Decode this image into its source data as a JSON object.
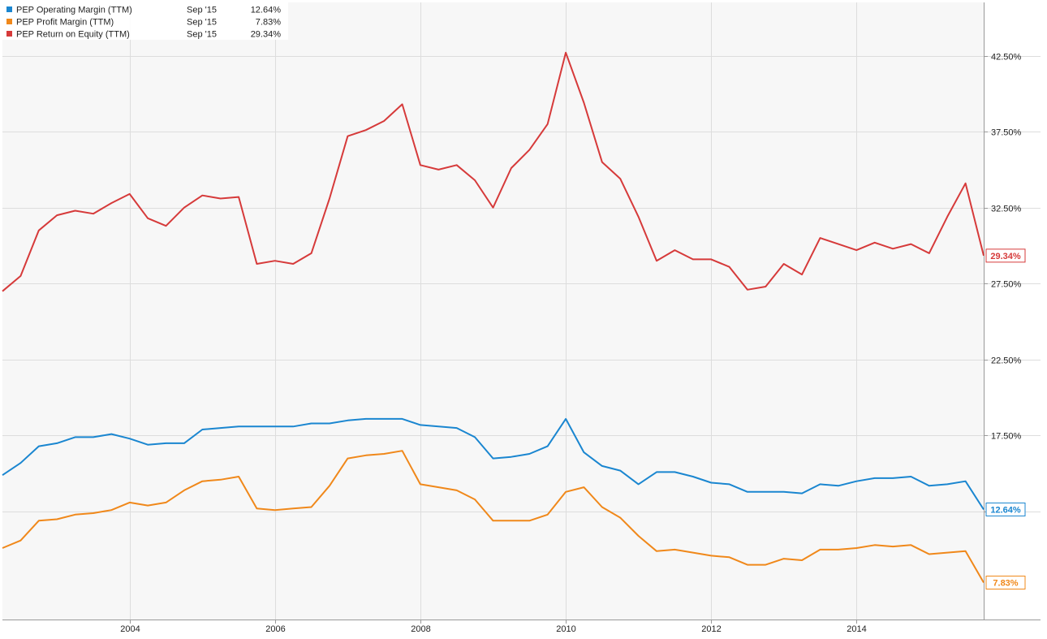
{
  "chart_data": {
    "type": "line",
    "title": "",
    "xlabel": "",
    "ylabel": "",
    "x_ticks": [
      "2004",
      "2006",
      "2008",
      "2010",
      "2012",
      "2014"
    ],
    "x_tick_values": [
      2004,
      2006,
      2008,
      2010,
      2012,
      2014
    ],
    "y_ticks": [
      "42.50%",
      "37.50%",
      "32.50%",
      "27.50%",
      "22.50%",
      "17.50%",
      "12.50%"
    ],
    "y_tick_values": [
      42.5,
      37.5,
      32.5,
      27.5,
      22.5,
      17.5,
      12.5
    ],
    "xlim": [
      2002.25,
      2015.75
    ],
    "ylim": [
      5.4,
      46.0
    ],
    "grid": true,
    "legend_position": "top-left",
    "x": [
      2002.25,
      2002.5,
      2002.75,
      2003.0,
      2003.25,
      2003.5,
      2003.75,
      2004.0,
      2004.25,
      2004.5,
      2004.75,
      2005.0,
      2005.25,
      2005.5,
      2005.75,
      2006.0,
      2006.25,
      2006.5,
      2006.75,
      2007.0,
      2007.25,
      2007.5,
      2007.75,
      2008.0,
      2008.25,
      2008.5,
      2008.75,
      2009.0,
      2009.25,
      2009.5,
      2009.75,
      2010.0,
      2010.25,
      2010.5,
      2010.75,
      2011.0,
      2011.25,
      2011.5,
      2011.75,
      2012.0,
      2012.25,
      2012.5,
      2012.75,
      2013.0,
      2013.25,
      2013.5,
      2013.75,
      2014.0,
      2014.25,
      2014.5,
      2014.75,
      2015.0,
      2015.25,
      2015.5,
      2015.75
    ],
    "series": [
      {
        "name": "PEP Operating Margin (TTM)",
        "color": "#1a86d0",
        "legend_date": "Sep '15",
        "legend_value": "12.64%",
        "end_label": "12.64%",
        "values": [
          14.9,
          15.7,
          16.8,
          17.0,
          17.4,
          17.4,
          17.6,
          17.3,
          16.9,
          17.0,
          17.0,
          17.9,
          18.0,
          18.1,
          18.1,
          18.1,
          18.1,
          18.3,
          18.3,
          18.5,
          18.6,
          18.6,
          18.6,
          18.2,
          18.1,
          18.0,
          17.4,
          16.0,
          16.1,
          16.3,
          16.8,
          18.6,
          16.4,
          15.5,
          15.2,
          14.3,
          15.1,
          15.1,
          14.8,
          14.4,
          14.3,
          13.8,
          13.8,
          13.8,
          13.7,
          14.3,
          14.2,
          14.5,
          14.7,
          14.7,
          14.8,
          14.2,
          14.3,
          14.5,
          12.64
        ]
      },
      {
        "name": "PEP Profit Margin (TTM)",
        "color": "#f0881a",
        "legend_date": "Sep '15",
        "legend_value": "7.83%",
        "end_label": "7.83%",
        "values": [
          10.1,
          10.6,
          11.9,
          12.0,
          12.3,
          12.4,
          12.6,
          13.1,
          12.9,
          13.1,
          13.9,
          14.5,
          14.6,
          14.8,
          12.7,
          12.6,
          12.7,
          12.8,
          14.2,
          16.0,
          16.2,
          16.3,
          16.5,
          14.3,
          14.1,
          13.9,
          13.3,
          11.9,
          11.9,
          11.9,
          12.3,
          13.8,
          14.1,
          12.8,
          12.1,
          10.9,
          9.9,
          10.0,
          9.8,
          9.6,
          9.5,
          9.0,
          9.0,
          9.4,
          9.3,
          10.0,
          10.0,
          10.1,
          10.3,
          10.2,
          10.3,
          9.7,
          9.8,
          9.9,
          7.83
        ]
      },
      {
        "name": "PEP Return on Equity (TTM)",
        "color": "#d63a3a",
        "legend_date": "Sep '15",
        "legend_value": "29.34%",
        "end_label": "29.34%",
        "values": [
          27.0,
          28.0,
          31.0,
          32.0,
          32.3,
          32.1,
          32.8,
          33.4,
          31.8,
          31.3,
          32.5,
          33.3,
          33.1,
          33.2,
          28.8,
          29.0,
          28.8,
          29.5,
          33.1,
          37.2,
          37.6,
          38.2,
          39.3,
          35.3,
          35.0,
          35.3,
          34.3,
          32.5,
          35.1,
          36.3,
          38.0,
          42.7,
          39.4,
          35.5,
          34.4,
          31.9,
          29.0,
          29.7,
          29.1,
          29.1,
          28.6,
          27.1,
          27.3,
          28.8,
          28.1,
          30.5,
          30.1,
          29.7,
          30.2,
          29.8,
          30.1,
          29.5,
          31.9,
          34.1,
          29.34
        ]
      }
    ]
  }
}
